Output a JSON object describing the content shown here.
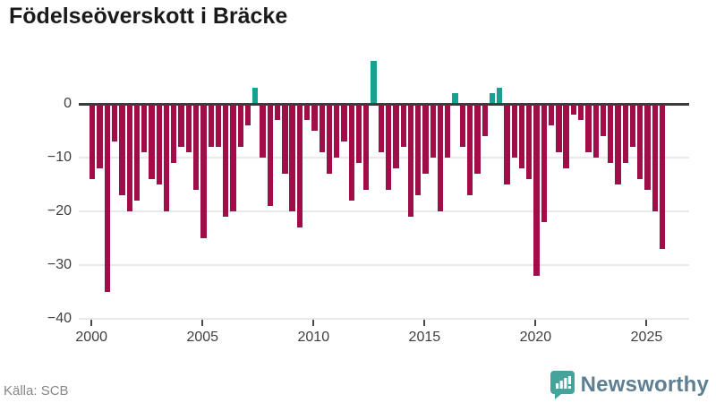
{
  "title": "Födelseöverskott i Bräcke",
  "source": "Källa: SCB",
  "brand": {
    "name": "Newsworthy",
    "icon": "newsworthy-speech-bubble-chart-icon"
  },
  "colors": {
    "bar_negative": "#a00d49",
    "bar_positive": "#18a092",
    "zero_line": "#3c3c3c",
    "gridline": "#e9e9e9",
    "title_text": "#1a1a1a",
    "axis_text": "#3f3f3f",
    "source_text": "#878787",
    "brand_text": "#5d7f92",
    "brand_icon": "#44a39a"
  },
  "chart_data": {
    "type": "bar",
    "title": "Födelseöverskott i Bräcke",
    "xlabel": "",
    "ylabel": "",
    "ylim": [
      -40,
      9
    ],
    "grid": "horizontal",
    "legend": "none",
    "bars_per_year": 3,
    "x_tick_labels": [
      "2000",
      "2005",
      "2010",
      "2015",
      "2020",
      "2025"
    ],
    "y_tick_labels": [
      "0",
      "−10",
      "−20",
      "−30",
      "−40"
    ],
    "y_tick_values": [
      0,
      -10,
      -20,
      -30,
      -40
    ],
    "series": [
      {
        "year": 2000,
        "values": [
          -14,
          -12,
          -35
        ]
      },
      {
        "year": 2001,
        "values": [
          -7,
          -17,
          -20
        ]
      },
      {
        "year": 2002,
        "values": [
          -18,
          -9,
          -14
        ]
      },
      {
        "year": 2003,
        "values": [
          -15,
          -20,
          -11
        ]
      },
      {
        "year": 2004,
        "values": [
          -8,
          -9,
          -16
        ]
      },
      {
        "year": 2005,
        "values": [
          -25,
          -8,
          -8
        ]
      },
      {
        "year": 2006,
        "values": [
          -21,
          -20,
          -8
        ]
      },
      {
        "year": 2007,
        "values": [
          -4,
          3,
          -10
        ]
      },
      {
        "year": 2008,
        "values": [
          -19,
          -3,
          -13
        ]
      },
      {
        "year": 2009,
        "values": [
          -20,
          -23,
          -3
        ]
      },
      {
        "year": 2010,
        "values": [
          -5,
          -9,
          -13
        ]
      },
      {
        "year": 2011,
        "values": [
          -10,
          -7,
          -18
        ]
      },
      {
        "year": 2012,
        "values": [
          -11,
          -16,
          8
        ]
      },
      {
        "year": 2013,
        "values": [
          -9,
          -16,
          -12
        ]
      },
      {
        "year": 2014,
        "values": [
          -8,
          -21,
          -17
        ]
      },
      {
        "year": 2015,
        "values": [
          -13,
          -10,
          -20
        ]
      },
      {
        "year": 2016,
        "values": [
          -10,
          2,
          -8
        ]
      },
      {
        "year": 2017,
        "values": [
          -17,
          -13,
          -6
        ]
      },
      {
        "year": 2018,
        "values": [
          2,
          3,
          -15
        ]
      },
      {
        "year": 2019,
        "values": [
          -10,
          -12,
          -14
        ]
      },
      {
        "year": 2020,
        "values": [
          -32,
          -22,
          -4
        ]
      },
      {
        "year": 2021,
        "values": [
          -9,
          -12,
          -2
        ]
      },
      {
        "year": 2022,
        "values": [
          -3,
          -9,
          -10
        ]
      },
      {
        "year": 2023,
        "values": [
          -6,
          -11,
          -15
        ]
      },
      {
        "year": 2024,
        "values": [
          -11,
          -8,
          -14
        ]
      },
      {
        "year": 2025,
        "values": [
          -16,
          -20,
          -27
        ]
      }
    ]
  }
}
